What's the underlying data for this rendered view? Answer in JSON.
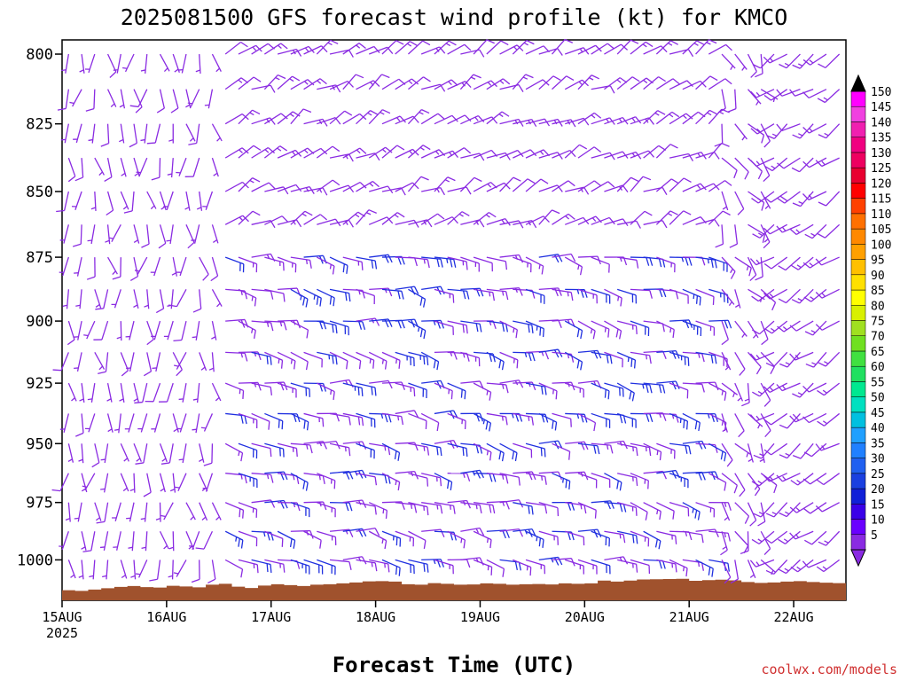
{
  "chart_data": {
    "type": "wind-barb-profile",
    "title": "2025081500 GFS forecast wind profile (kt) for KMCO",
    "xlabel": "Forecast Time (UTC)",
    "ylabel": "",
    "credit": "coolwx.com/models",
    "x_ticks": [
      {
        "label": "15AUG",
        "sublabel": "2025",
        "day": 0
      },
      {
        "label": "16AUG",
        "sublabel": "",
        "day": 1
      },
      {
        "label": "17AUG",
        "sublabel": "",
        "day": 2
      },
      {
        "label": "18AUG",
        "sublabel": "",
        "day": 3
      },
      {
        "label": "19AUG",
        "sublabel": "",
        "day": 4
      },
      {
        "label": "20AUG",
        "sublabel": "",
        "day": 5
      },
      {
        "label": "21AUG",
        "sublabel": "",
        "day": 6
      },
      {
        "label": "22AUG",
        "sublabel": "",
        "day": 7
      }
    ],
    "xlim_days": [
      0,
      7.5
    ],
    "y_ticks": [
      800,
      825,
      850,
      875,
      900,
      925,
      950,
      975,
      1000
    ],
    "ylim_hpa": [
      795,
      1018
    ],
    "y_scale": "log-pressure",
    "pressure_levels": [
      800,
      825,
      850,
      875,
      900,
      925,
      950,
      975,
      1000
    ],
    "colorbar": {
      "levels": [
        5,
        10,
        15,
        20,
        25,
        30,
        35,
        40,
        45,
        50,
        55,
        60,
        65,
        70,
        75,
        80,
        85,
        90,
        95,
        100,
        105,
        110,
        115,
        120,
        125,
        130,
        135,
        140,
        145,
        150
      ],
      "colors": [
        "#8a2be2",
        "#6a00ff",
        "#3a00e8",
        "#1020d8",
        "#1a40e0",
        "#2060f0",
        "#2080ff",
        "#20a0ff",
        "#00c0e0",
        "#00e0c0",
        "#00e890",
        "#20e060",
        "#40e040",
        "#70e020",
        "#a0e020",
        "#d8f000",
        "#ffff00",
        "#ffe000",
        "#ffc000",
        "#ffa000",
        "#ff8800",
        "#ff7000",
        "#ff4000",
        "#ff0000",
        "#e80030",
        "#ee0060",
        "#f00080",
        "#f020b0",
        "#f040e0",
        "#ff00ff"
      ],
      "over_color": "#000000",
      "under_color": "#8a2be2"
    },
    "terrain_color": "#a0522d",
    "barb_color": "#8a2be2",
    "barb_color_fast": "#2030e0",
    "surface_pressure_hpa": [
      1013.5,
      1013.8,
      1013.2,
      1012.6,
      1012.0,
      1011.6,
      1012.1,
      1012.3,
      1011.5,
      1011.8,
      1012.2,
      1011.0,
      1010.6,
      1011.9,
      1012.5,
      1011.4,
      1010.8,
      1011.2,
      1011.6,
      1011.0,
      1010.8,
      1010.4,
      1010.0,
      1009.5,
      1009.4,
      1009.6,
      1010.8,
      1011.0,
      1010.3,
      1010.6,
      1011.0,
      1010.9,
      1010.4,
      1010.6,
      1011.0,
      1010.8,
      1010.7,
      1010.9,
      1010.4,
      1010.6,
      1010.4,
      1009.2,
      1009.6,
      1009.2,
      1008.7,
      1008.6,
      1008.5,
      1008.4,
      1009.3,
      1009.0,
      1008.8,
      1009.1,
      1009.8,
      1010.2,
      1010.0,
      1009.6,
      1009.4,
      1009.8,
      1010.1,
      1010.3
    ],
    "wind_series": [
      {
        "day": 0.0,
        "pressure": 1000,
        "speed_kt": 8,
        "dir_deg": 160
      }
    ]
  }
}
